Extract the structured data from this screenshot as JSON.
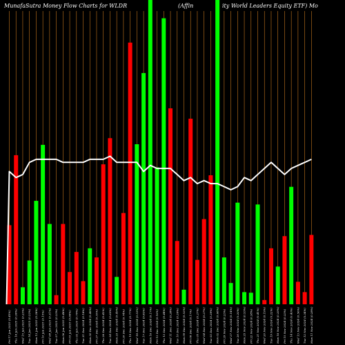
{
  "chart_data": {
    "type": "bar",
    "title_left": "MunafaSutra  Money Flow  Charts for WLDR",
    "title_mid": "(Affin",
    "title_right": "ity World Leaders Equity ETF) Mo",
    "categories": [
      "Fri 17 Jan 2025",
      "Thu 16 Jan 2025",
      "Wed 15 Jan 2025",
      "Tue 14 Jan 2025",
      "Mon 13 Jan 2025",
      "Fri 10 Jan 2025",
      "Wed 08 Jan 2025",
      "Tue 07 Jan 2025",
      "Mon 06 Jan 2025",
      "Fri 03 Jan 2025",
      "Thu 02 Jan 2025",
      "Tue 31 Dec 2024",
      "Mon 30 Dec 2024",
      "Fri 27 Dec 2024",
      "Thu 26 Dec 2024",
      "Tue 24 Dec 2024",
      "Mon 23 Dec 2024",
      "Fri 20 Dec 2024",
      "Thu 19 Dec 2024",
      "Wed 18 Dec 2024",
      "Tue 17 Dec 2024",
      "Mon 16 Dec 2024",
      "Fri 13 Dec 2024",
      "Thu 12 Dec 2024",
      "Wed 11 Dec 2024",
      "Tue 10 Dec 2024",
      "Mon 09 Dec 2024",
      "Fri 06 Dec 2024",
      "Thu 05 Dec 2024",
      "Wed 04 Dec 2024",
      "Tue 03 Dec 2024",
      "Mon 02 Dec 2024",
      "Fri 29 Nov 2024",
      "Wed 27 Nov 2024",
      "Tue 26 Nov 2024",
      "Mon 25 Nov 2024",
      "Fri 22 Nov 2024",
      "Thu 21 Nov 2024",
      "Wed 20 Nov 2024",
      "Tue 19 Nov 2024",
      "Mon 18 Nov 2024",
      "Fri 15 Nov 2024",
      "Thu 14 Nov 2024",
      "Wed 13 Nov 2024",
      "Tue 12 Nov 2024",
      "Mon 11 Nov 2024"
    ],
    "tick_pct": [
      "0.45%",
      "0.36%",
      "0.23%",
      "0.22%",
      "0.28%",
      "0.15%",
      "0.31%",
      "0.33%",
      "0.48%",
      "0.66%",
      "0.79%",
      "0.18%",
      "0.48%",
      "0.35%",
      "0.42%",
      "0.60%",
      "0.49%",
      "0.74%",
      "0.77%",
      "0.53%",
      "0.82%",
      "0.17%",
      "0.16%",
      "0.44%",
      "0.28%",
      "0.39%",
      "0.53%",
      "0.17%",
      "0.27%",
      "0.27%",
      "0.39%",
      "0.68%",
      "0.23%",
      "0.14%",
      "0.20%",
      "0.53%",
      "0.38%",
      "0.41%",
      "0.19%",
      "0.22%",
      "0.30%",
      "0.33%",
      "0.40%",
      "0.56%",
      "0.34%",
      "0.28%"
    ],
    "volume": [
      130,
      245,
      28,
      72,
      170,
      262,
      132,
      15,
      132,
      53,
      86,
      38,
      92,
      77,
      230,
      273,
      45,
      150,
      430,
      263,
      380,
      500,
      225,
      470,
      322,
      104,
      24,
      305,
      73,
      140,
      212,
      500,
      77,
      35,
      167,
      20,
      19,
      164,
      7,
      92,
      62,
      112,
      193,
      37,
      20,
      114
    ],
    "direction": [
      "red",
      "red",
      "green",
      "green",
      "green",
      "green",
      "green",
      "red",
      "red",
      "red",
      "red",
      "red",
      "green",
      "red",
      "red",
      "red",
      "green",
      "red",
      "red",
      "green",
      "green",
      "green",
      "green",
      "green",
      "red",
      "red",
      "green",
      "red",
      "red",
      "red",
      "red",
      "green",
      "green",
      "green",
      "green",
      "green",
      "green",
      "green",
      "red",
      "red",
      "green",
      "red",
      "green",
      "red",
      "red",
      "red"
    ],
    "money_flow_line": [
      50,
      48,
      49,
      53,
      54,
      54,
      54,
      54,
      53,
      53,
      53,
      53,
      54,
      54,
      54,
      55,
      53,
      53,
      53,
      53,
      50,
      52,
      51,
      51,
      51,
      49,
      47,
      48,
      46,
      47,
      46,
      46,
      45,
      44,
      45,
      48,
      47,
      49,
      51,
      53,
      51,
      49,
      51,
      52,
      53,
      54
    ],
    "colors": {
      "background": "#000000",
      "grid": "#c8781e",
      "bar_up": "#00ff00",
      "bar_down": "#ff0000",
      "line": "#ffffff",
      "text": "#ffffff"
    }
  }
}
